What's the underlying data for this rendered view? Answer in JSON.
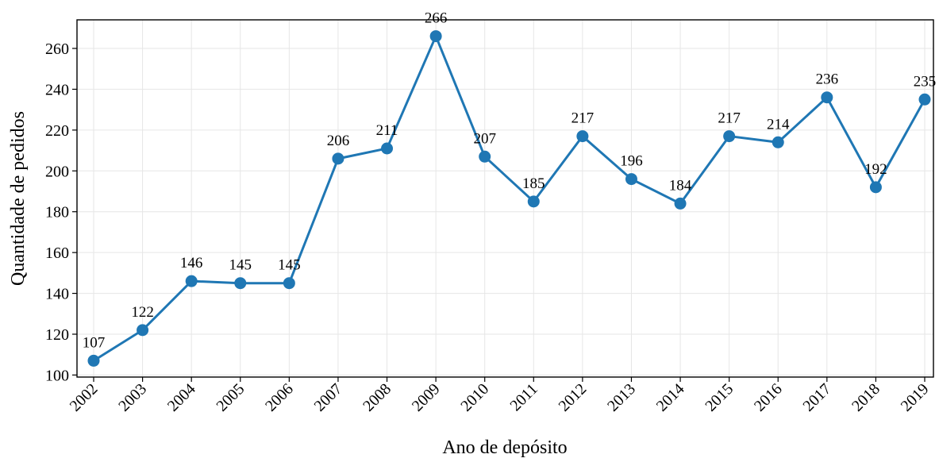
{
  "chart_data": {
    "type": "line",
    "xlabel": "Ano de depósito",
    "ylabel": "Quantidade de pedidos",
    "categories": [
      "2002",
      "2003",
      "2004",
      "2005",
      "2006",
      "2007",
      "2008",
      "2009",
      "2010",
      "2011",
      "2012",
      "2013",
      "2014",
      "2015",
      "2016",
      "2017",
      "2018",
      "2019"
    ],
    "values": [
      107,
      122,
      146,
      145,
      145,
      206,
      211,
      266,
      207,
      185,
      217,
      196,
      184,
      217,
      214,
      236,
      192,
      235
    ],
    "color": "#1f77b4",
    "ylim": [
      99,
      274
    ],
    "yticks": [
      100,
      120,
      140,
      160,
      180,
      200,
      220,
      240,
      260
    ],
    "grid": true
  }
}
